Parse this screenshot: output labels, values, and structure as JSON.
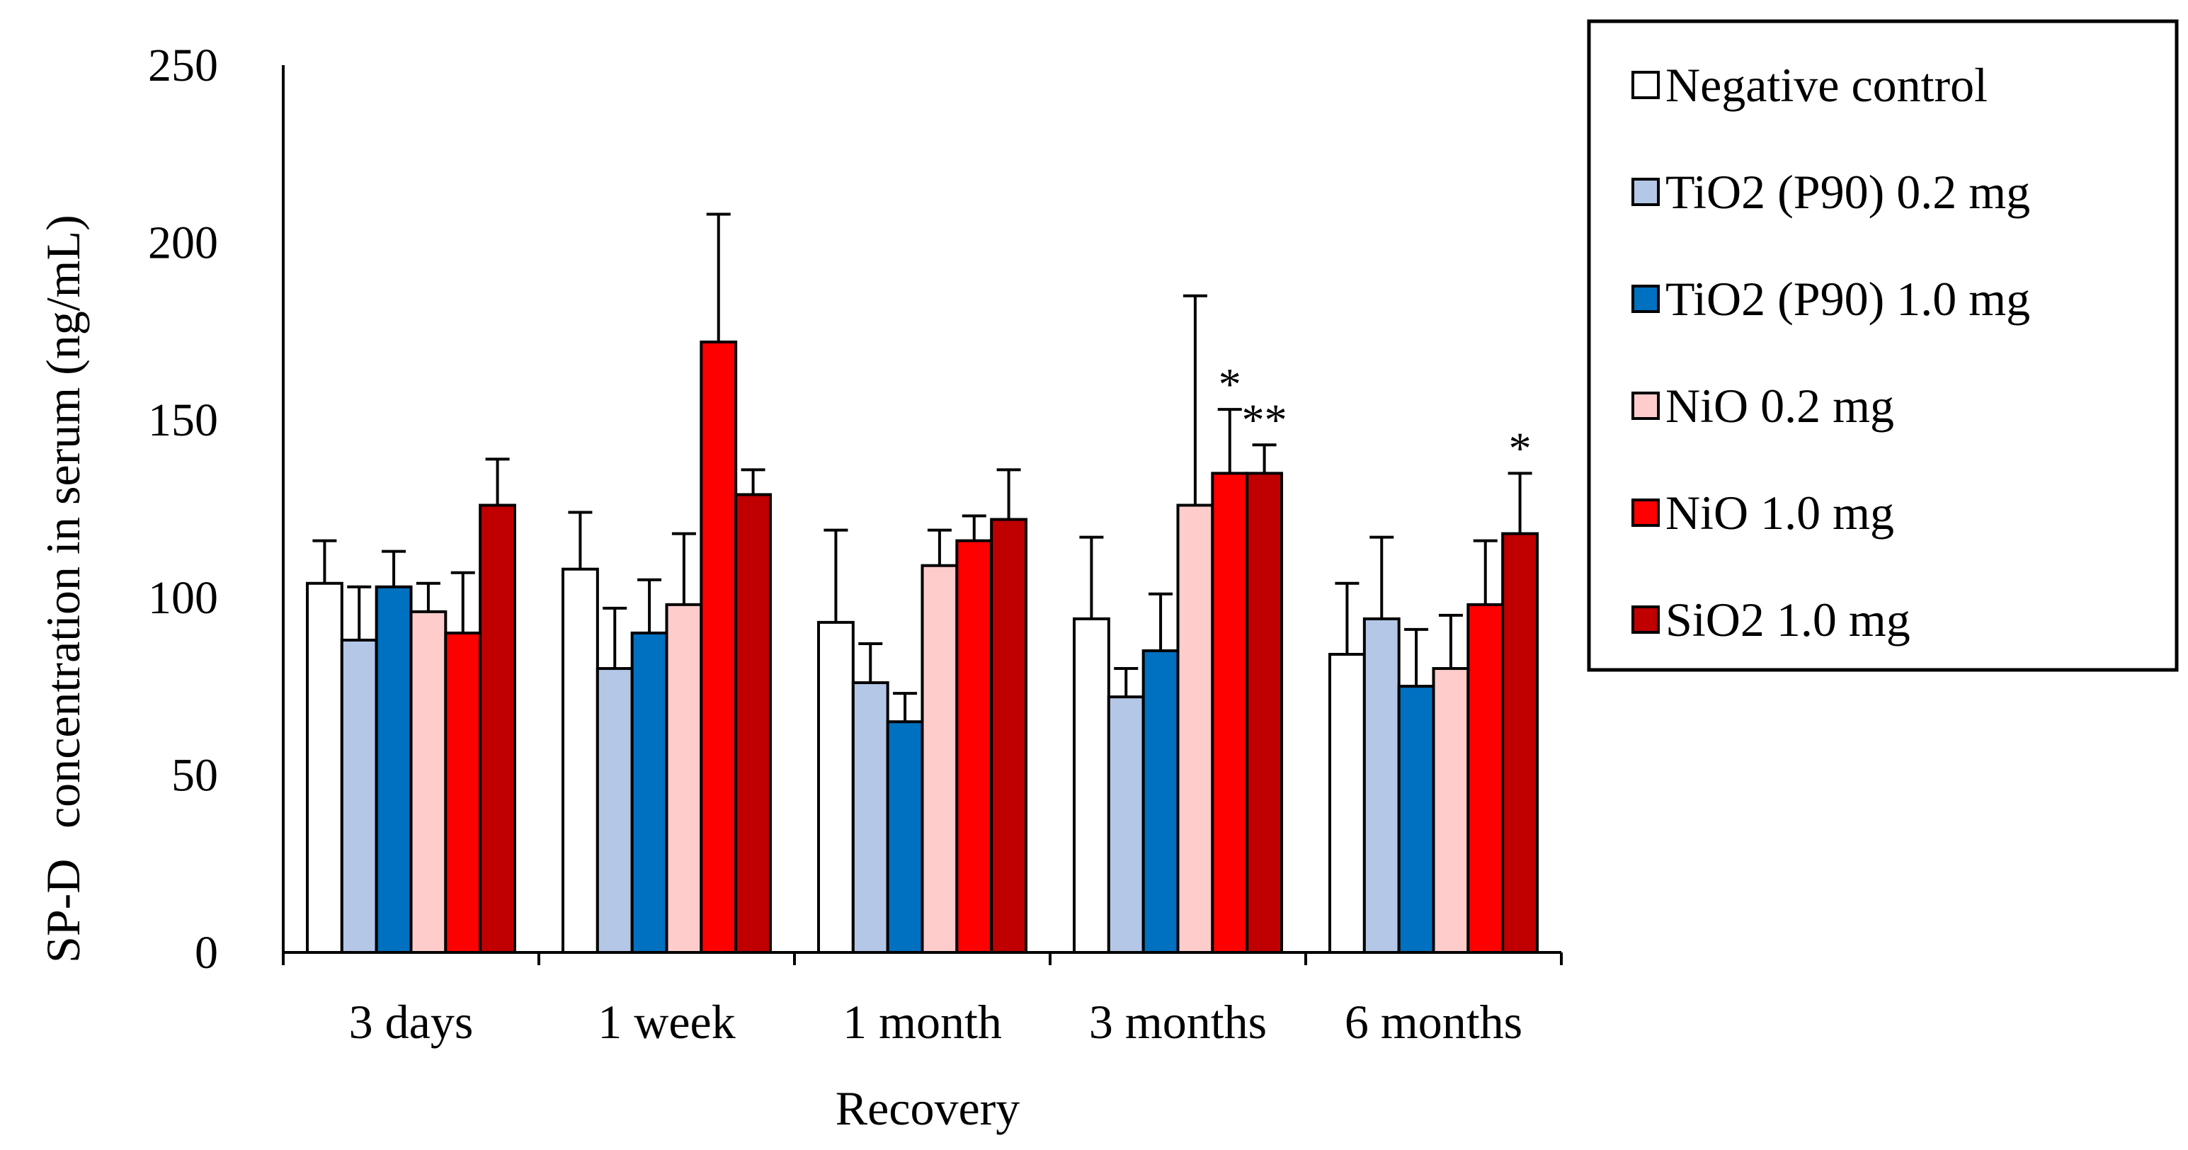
{
  "chart_data": {
    "type": "bar",
    "title": "",
    "xlabel": "Recovery",
    "ylabel_prefix": "SP-D",
    "ylabel": "concentration in serum (ng/mL)",
    "ylim": [
      0,
      250
    ],
    "yticks": [
      "0",
      "50",
      "100",
      "150",
      "200",
      "250"
    ],
    "ytick_values": [
      0,
      50,
      100,
      150,
      200,
      250
    ],
    "categories": [
      "3 days",
      "1 week",
      "1 month",
      "3 months",
      "6 months"
    ],
    "legend_position": "top-right, outside plot",
    "series": [
      {
        "name": "Negative control",
        "color": "#ffffff",
        "values": [
          104,
          108,
          93,
          94,
          84
        ],
        "errors": [
          12,
          16,
          26,
          23,
          20
        ]
      },
      {
        "name": "TiO2 (P90) 0.2 mg",
        "color": "#b4c7e7",
        "values": [
          88,
          80,
          76,
          72,
          94
        ],
        "errors": [
          15,
          17,
          11,
          8,
          23
        ]
      },
      {
        "name": "TiO2 (P90) 1.0 mg",
        "color": "#0070c0",
        "values": [
          103,
          90,
          65,
          85,
          75
        ],
        "errors": [
          10,
          15,
          8,
          16,
          16
        ]
      },
      {
        "name": "NiO 0.2 mg",
        "color": "#ffcccc",
        "values": [
          96,
          98,
          109,
          126,
          80
        ],
        "errors": [
          8,
          20,
          10,
          59,
          15
        ]
      },
      {
        "name": "NiO 1.0 mg",
        "color": "#ff0000",
        "values": [
          90,
          172,
          116,
          135,
          98
        ],
        "errors": [
          17,
          36,
          7,
          18,
          18
        ]
      },
      {
        "name": "SiO2 1.0 mg",
        "color": "#c00000",
        "values": [
          126,
          129,
          122,
          135,
          118
        ],
        "errors": [
          13,
          7,
          14,
          8,
          17
        ]
      }
    ],
    "annotations": [
      {
        "text": "*",
        "category": "3 months",
        "series": "NiO 1.0 mg"
      },
      {
        "text": "**",
        "category": "3 months",
        "series": "SiO2 1.0 mg"
      },
      {
        "text": "*",
        "category": "6 months",
        "series": "SiO2 1.0 mg"
      }
    ]
  }
}
